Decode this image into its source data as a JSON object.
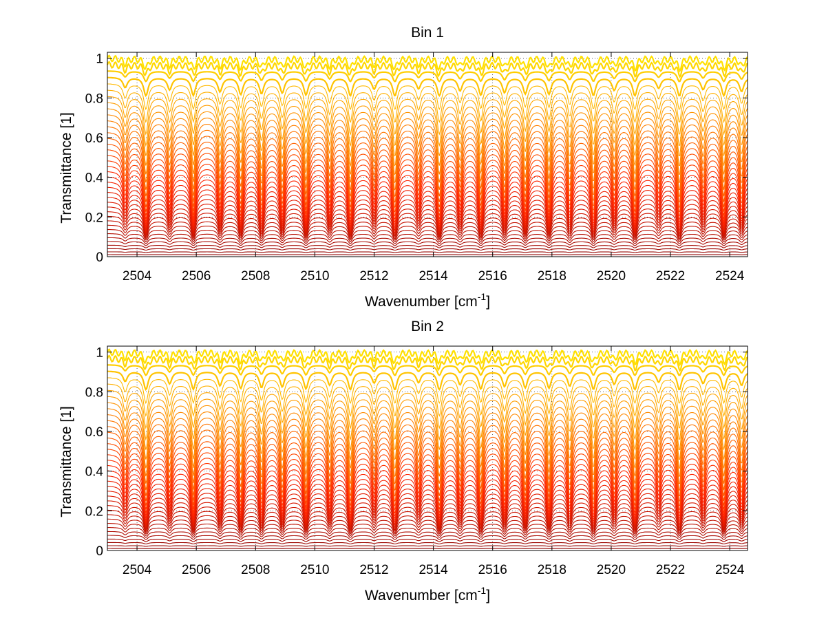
{
  "chart_data": [
    {
      "type": "line",
      "title": "Bin 1",
      "xlabel_base": "Wavenumber [cm",
      "xlabel_sup": "-1",
      "xlabel_end": "]",
      "ylabel": "Transmittance [1]",
      "xlim": [
        2503.0,
        2524.6
      ],
      "ylim": [
        0,
        1.03
      ],
      "xticks": [
        2504,
        2506,
        2508,
        2510,
        2512,
        2514,
        2516,
        2518,
        2520,
        2522,
        2524
      ],
      "yticks": [
        0,
        0.2,
        0.4,
        0.6,
        0.8,
        1
      ],
      "ytick_labels": [
        "0",
        "0.2",
        "0.4",
        "0.6",
        "0.8",
        "1"
      ],
      "grid": "dotted",
      "series_count": 40,
      "series_colors": [
        "#8b0000",
        "#ff2400",
        "#ffe000"
      ],
      "absorption_lines": [
        2503.6,
        2504.3,
        2505.1,
        2505.9,
        2506.8,
        2507.5,
        2508.2,
        2508.9,
        2509.7,
        2510.5,
        2511.2,
        2512.0,
        2512.7,
        2513.5,
        2514.2,
        2514.9,
        2515.6,
        2516.4,
        2517.1,
        2517.9,
        2518.6,
        2519.4,
        2520.1,
        2520.8,
        2521.6,
        2522.3,
        2523.1,
        2523.8,
        2524.4
      ]
    },
    {
      "type": "line",
      "title": "Bin 2",
      "xlabel_base": "Wavenumber [cm",
      "xlabel_sup": "-1",
      "xlabel_end": "]",
      "ylabel": "Transmittance [1]",
      "xlim": [
        2503.0,
        2524.6
      ],
      "ylim": [
        0,
        1.03
      ],
      "xticks": [
        2504,
        2506,
        2508,
        2510,
        2512,
        2514,
        2516,
        2518,
        2520,
        2522,
        2524
      ],
      "yticks": [
        0,
        0.2,
        0.4,
        0.6,
        0.8,
        1
      ],
      "ytick_labels": [
        "0",
        "0.2",
        "0.4",
        "0.6",
        "0.8",
        "1"
      ],
      "grid": "dotted",
      "series_count": 40,
      "series_colors": [
        "#8b0000",
        "#ff2400",
        "#ffe000"
      ],
      "absorption_lines": [
        2503.6,
        2504.3,
        2505.1,
        2505.9,
        2506.8,
        2507.5,
        2508.2,
        2508.9,
        2509.7,
        2510.5,
        2511.2,
        2512.0,
        2512.7,
        2513.5,
        2514.2,
        2514.9,
        2515.6,
        2516.4,
        2517.1,
        2517.9,
        2518.6,
        2519.4,
        2520.1,
        2520.8,
        2521.6,
        2522.3,
        2523.1,
        2523.8,
        2524.4
      ]
    }
  ]
}
